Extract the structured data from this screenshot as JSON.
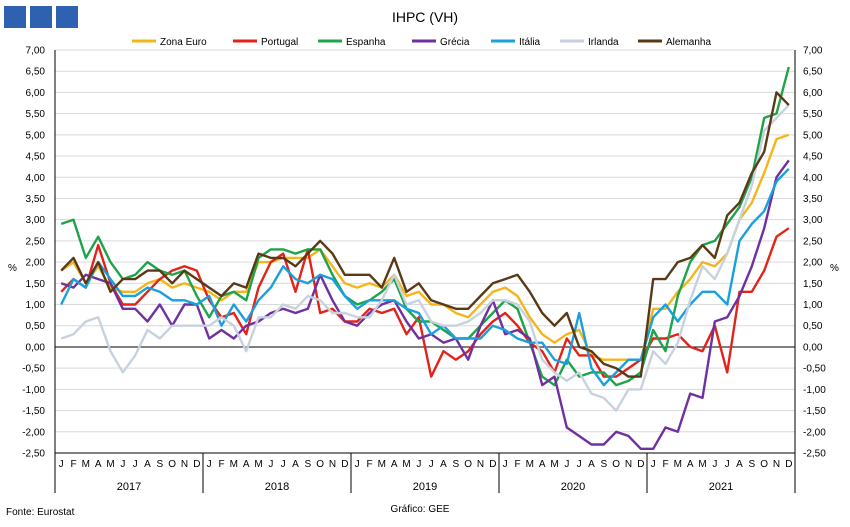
{
  "header": {
    "brand_squares": [
      "#2e62b0",
      "#2e62b0",
      "#2e62b0"
    ]
  },
  "chart_data": {
    "type": "line",
    "title": "IHPC (VH)",
    "ylabel_left": "%",
    "ylabel_right": "%",
    "ylim": [
      -2.5,
      7.0
    ],
    "yticks": [
      "-2,50",
      "-2,00",
      "-1,50",
      "-1,00",
      "-0,50",
      "0,00",
      "0,50",
      "1,00",
      "1,50",
      "2,00",
      "2,50",
      "3,00",
      "3,50",
      "4,00",
      "4,50",
      "5,00",
      "5,50",
      "6,00",
      "6,50",
      "7,00"
    ],
    "years": [
      "2017",
      "2018",
      "2019",
      "2020",
      "2021"
    ],
    "months": [
      "J",
      "F",
      "M",
      "A",
      "M",
      "J",
      "J",
      "A",
      "S",
      "O",
      "N",
      "D"
    ],
    "grid": true,
    "legend_position": "top",
    "series": [
      {
        "name": "Zona Euro",
        "color": "#f5b51a",
        "values": [
          1.8,
          2.0,
          1.5,
          1.9,
          1.4,
          1.3,
          1.3,
          1.5,
          1.6,
          1.4,
          1.5,
          1.4,
          1.3,
          1.1,
          1.3,
          1.3,
          2.0,
          2.0,
          2.1,
          2.1,
          2.1,
          2.3,
          1.9,
          1.5,
          1.4,
          1.5,
          1.4,
          1.7,
          1.2,
          1.3,
          1.0,
          1.0,
          0.8,
          0.7,
          1.0,
          1.3,
          1.4,
          1.2,
          0.7,
          0.3,
          0.1,
          0.3,
          0.4,
          -0.2,
          -0.3,
          -0.3,
          -0.3,
          -0.3,
          0.9,
          0.9,
          1.3,
          1.6,
          2.0,
          1.9,
          2.2,
          3.0,
          3.4,
          4.1,
          4.9,
          5.0
        ]
      },
      {
        "name": "Portugal",
        "color": "#e2231a",
        "values": [
          1.3,
          1.6,
          1.4,
          2.4,
          1.5,
          1.0,
          1.0,
          1.3,
          1.6,
          1.8,
          1.9,
          1.8,
          1.1,
          0.7,
          0.8,
          0.3,
          1.4,
          2.0,
          2.2,
          1.3,
          2.3,
          0.8,
          0.9,
          0.6,
          0.6,
          0.9,
          0.8,
          0.9,
          0.3,
          0.7,
          -0.7,
          -0.1,
          -0.3,
          -0.1,
          0.3,
          0.6,
          0.8,
          0.5,
          0.1,
          -0.1,
          -0.6,
          0.2,
          -0.2,
          -0.2,
          -0.7,
          -0.7,
          -0.5,
          -0.3,
          0.2,
          0.2,
          0.3,
          0.0,
          -0.1,
          0.5,
          -0.6,
          1.3,
          1.3,
          1.8,
          2.6,
          2.8
        ]
      },
      {
        "name": "Espanha",
        "color": "#1ea34a",
        "values": [
          2.9,
          3.0,
          2.1,
          2.6,
          2.0,
          1.6,
          1.7,
          2.0,
          1.8,
          1.7,
          1.8,
          1.2,
          0.7,
          1.2,
          1.3,
          1.1,
          2.1,
          2.3,
          2.3,
          2.2,
          2.3,
          2.3,
          1.7,
          1.2,
          1.0,
          1.1,
          1.3,
          1.6,
          0.9,
          0.6,
          0.6,
          0.4,
          0.2,
          0.2,
          0.5,
          0.8,
          1.1,
          0.9,
          0.1,
          -0.7,
          -0.9,
          -0.3,
          -0.7,
          -0.6,
          -0.6,
          -0.9,
          -0.8,
          -0.6,
          0.4,
          -0.1,
          1.2,
          2.0,
          2.4,
          2.5,
          2.9,
          3.3,
          4.0,
          5.4,
          5.5,
          6.6
        ]
      },
      {
        "name": "Grécia",
        "color": "#7030a0",
        "values": [
          1.5,
          1.4,
          1.7,
          1.6,
          1.5,
          0.9,
          0.9,
          0.6,
          1.0,
          0.5,
          1.0,
          1.0,
          0.2,
          0.4,
          0.2,
          0.5,
          0.6,
          0.8,
          0.9,
          0.8,
          0.9,
          1.7,
          1.1,
          0.6,
          0.5,
          0.8,
          1.0,
          1.1,
          0.6,
          0.2,
          0.3,
          0.1,
          0.2,
          -0.3,
          0.5,
          1.1,
          0.3,
          0.4,
          0.2,
          -0.9,
          -0.7,
          -1.9,
          -2.1,
          -2.3,
          -2.3,
          -2.0,
          -2.1,
          -2.4,
          -2.4,
          -1.9,
          -2.0,
          -1.1,
          -1.2,
          0.6,
          0.7,
          1.2,
          1.9,
          2.8,
          4.0,
          4.4
        ]
      },
      {
        "name": "Itália",
        "color": "#1aa0dc",
        "values": [
          1.0,
          1.6,
          1.4,
          2.0,
          1.6,
          1.2,
          1.2,
          1.4,
          1.3,
          1.1,
          1.1,
          1.0,
          1.2,
          0.5,
          1.0,
          0.6,
          1.1,
          1.4,
          1.9,
          1.6,
          1.5,
          1.7,
          1.6,
          1.2,
          0.9,
          1.1,
          1.1,
          1.1,
          0.9,
          0.8,
          0.3,
          0.5,
          0.2,
          0.2,
          0.2,
          0.5,
          0.4,
          0.2,
          0.1,
          0.1,
          -0.3,
          -0.4,
          0.8,
          -0.5,
          -0.9,
          -0.6,
          -0.3,
          -0.3,
          0.7,
          1.0,
          0.6,
          1.0,
          1.3,
          1.3,
          1.0,
          2.5,
          2.9,
          3.2,
          3.9,
          4.2
        ]
      },
      {
        "name": "Irlanda",
        "color": "#c8d2de",
        "values": [
          0.2,
          0.3,
          0.6,
          0.7,
          -0.1,
          -0.6,
          -0.2,
          0.4,
          0.2,
          0.5,
          0.5,
          0.5,
          0.5,
          0.7,
          0.5,
          -0.1,
          0.7,
          0.7,
          1.0,
          0.9,
          1.2,
          1.1,
          0.8,
          0.8,
          0.7,
          0.7,
          1.1,
          1.7,
          1.0,
          1.1,
          0.6,
          0.5,
          0.5,
          0.6,
          0.8,
          1.1,
          1.1,
          1.0,
          0.6,
          -0.3,
          -0.6,
          -0.8,
          -0.6,
          -1.1,
          -1.2,
          -1.5,
          -1.0,
          -1.0,
          -0.1,
          -0.4,
          0.1,
          1.1,
          1.9,
          1.6,
          2.2,
          3.0,
          3.8,
          5.1,
          5.4,
          5.7
        ]
      },
      {
        "name": "Alemanha",
        "color": "#5a3a16",
        "values": [
          1.8,
          2.1,
          1.5,
          2.0,
          1.3,
          1.6,
          1.6,
          1.8,
          1.8,
          1.5,
          1.8,
          1.6,
          1.4,
          1.2,
          1.5,
          1.4,
          2.2,
          2.1,
          2.1,
          1.9,
          2.2,
          2.5,
          2.2,
          1.7,
          1.7,
          1.7,
          1.4,
          2.1,
          1.3,
          1.5,
          1.1,
          1.0,
          0.9,
          0.9,
          1.2,
          1.5,
          1.6,
          1.7,
          1.3,
          0.8,
          0.5,
          0.8,
          0.0,
          -0.1,
          -0.4,
          -0.5,
          -0.7,
          -0.7,
          1.6,
          1.6,
          2.0,
          2.1,
          2.4,
          2.1,
          3.1,
          3.4,
          4.1,
          4.6,
          6.0,
          5.7
        ]
      }
    ]
  },
  "footer": {
    "source": "Fonte: Eurostat",
    "graph_credit": "Gráfico: GEE"
  }
}
